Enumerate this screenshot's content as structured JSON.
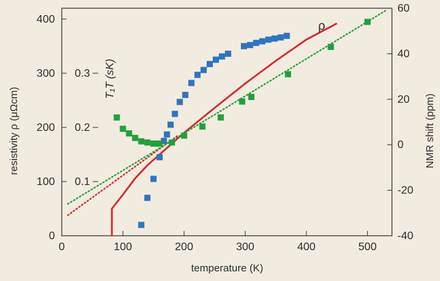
{
  "chart_data": {
    "type": "scatter",
    "title": "",
    "xlabel": "temperature (K)",
    "ylabel_left": "resistivity  ρ  (μΩcm)",
    "ylabel_right": "NMR shift (ppm)",
    "ylabel_inner": "T₁T (sK)",
    "xlim": [
      0,
      540
    ],
    "ylim_left": [
      0,
      420
    ],
    "ylim_right": [
      -40,
      60
    ],
    "ylim_inner": [
      0,
      0.42
    ],
    "xticks": [
      0,
      100,
      200,
      300,
      400,
      500
    ],
    "yticks_left": [
      0,
      100,
      200,
      300,
      400
    ],
    "yticks_right": [
      -40,
      -20,
      0,
      20,
      40,
      60
    ],
    "yticks_inner": [
      0.1,
      0.2,
      0.3
    ],
    "yticks_inner_labels": [
      "0.1",
      "0.2",
      "0.3"
    ],
    "grid": false,
    "series": [
      {
        "name": "ρ",
        "kind": "line",
        "axis": "left",
        "color": "#d9262b",
        "points": [
          [
            82,
            0
          ],
          [
            82,
            50
          ],
          [
            100,
            76
          ],
          [
            120,
            106
          ],
          [
            140,
            130
          ],
          [
            160,
            150
          ],
          [
            180,
            170
          ],
          [
            200,
            190
          ],
          [
            250,
            236
          ],
          [
            300,
            281
          ],
          [
            350,
            323
          ],
          [
            400,
            362
          ],
          [
            450,
            392
          ]
        ]
      },
      {
        "name": "ρ linear fit",
        "kind": "dotted-line",
        "axis": "left",
        "color": "#d9262b",
        "points": [
          [
            10,
            38
          ],
          [
            190,
            185
          ]
        ]
      },
      {
        "name": "T₁T",
        "kind": "markers",
        "axis": "inner",
        "color": "#2f74c0",
        "points": [
          [
            130,
            0.02
          ],
          [
            140,
            0.07
          ],
          [
            150,
            0.105
          ],
          [
            160,
            0.145
          ],
          [
            167,
            0.175
          ],
          [
            172,
            0.187
          ],
          [
            178,
            0.205
          ],
          [
            185,
            0.225
          ],
          [
            193,
            0.247
          ],
          [
            202,
            0.26
          ],
          [
            212,
            0.282
          ],
          [
            222,
            0.297
          ],
          [
            232,
            0.306
          ],
          [
            242,
            0.317
          ],
          [
            252,
            0.325
          ],
          [
            262,
            0.331
          ],
          [
            272,
            0.336
          ],
          [
            298,
            0.35
          ],
          [
            308,
            0.352
          ],
          [
            318,
            0.356
          ],
          [
            328,
            0.359
          ],
          [
            338,
            0.362
          ],
          [
            348,
            0.364
          ],
          [
            358,
            0.366
          ],
          [
            368,
            0.369
          ]
        ]
      },
      {
        "name": "NMR shift",
        "kind": "markers",
        "axis": "right",
        "color": "#22a03a",
        "points": [
          [
            90,
            12
          ],
          [
            100,
            7
          ],
          [
            110,
            5
          ],
          [
            120,
            3
          ],
          [
            130,
            1.5
          ],
          [
            140,
            1
          ],
          [
            150,
            0.5
          ],
          [
            160,
            0.5
          ],
          [
            180,
            1
          ],
          [
            200,
            4
          ],
          [
            230,
            8
          ],
          [
            260,
            12
          ],
          [
            295,
            19
          ],
          [
            310,
            21
          ],
          [
            370,
            31
          ],
          [
            440,
            43
          ],
          [
            500,
            54
          ]
        ]
      },
      {
        "name": "NMR shift linear fit",
        "kind": "dotted-line",
        "axis": "right",
        "color": "#22a03a",
        "points": [
          [
            10,
            -26
          ],
          [
            530,
            59
          ]
        ]
      }
    ],
    "annotations": [
      {
        "text": "ρ",
        "x": 425,
        "y": 380,
        "axis": "left"
      }
    ]
  }
}
